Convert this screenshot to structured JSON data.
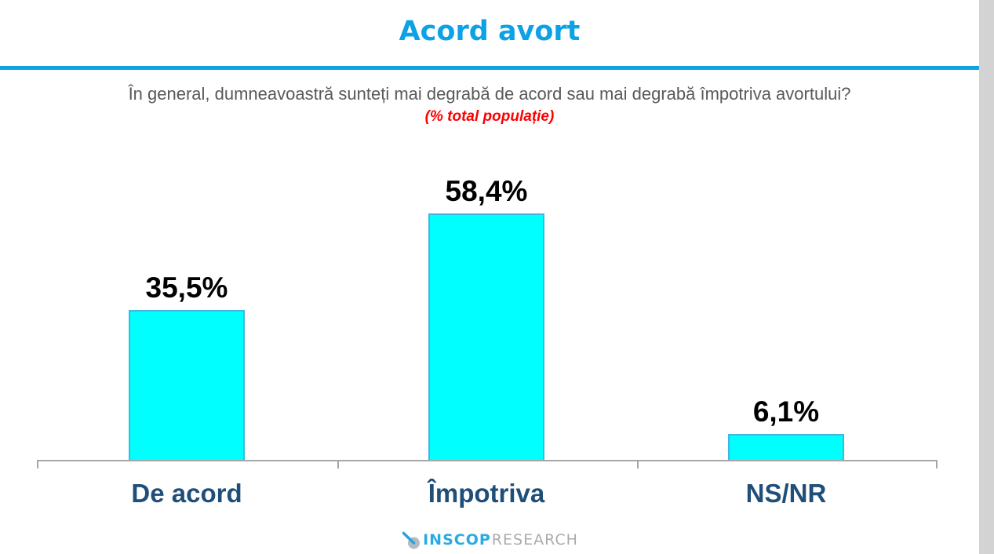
{
  "header": {
    "title": "Acord avort",
    "question": "În general, dumneavoastră sunteți mai degrabă de acord sau mai degrabă împotriva avortului?",
    "note": "(% total populație)"
  },
  "chart_data": {
    "type": "bar",
    "title": "Acord avort",
    "subtitle": "În general, dumneavoastră sunteți mai degrabă de acord sau mai degrabă împotriva avortului?",
    "unit_note": "(% total populație)",
    "categories": [
      "De acord",
      "Împotriva",
      "NS/NR"
    ],
    "values": [
      35.5,
      58.4,
      6.1
    ],
    "value_labels": [
      "35,5%",
      "58,4%",
      "6,1%"
    ],
    "ylim": [
      0,
      70
    ],
    "grid": false,
    "legend": false,
    "bar_color": "#00FFFF",
    "bar_border_color": "#41B6E0",
    "value_label_color": "#000000",
    "category_label_color": "#1F4E79",
    "axis_color": "#A6A6A6"
  },
  "branding": {
    "logo_primary": "INSCOP",
    "logo_secondary": "RESEARCH",
    "logo_icon": "compass-pin-icon"
  },
  "colors": {
    "accent_blue": "#0DA2E6",
    "question_gray": "#595959",
    "note_red": "#FF0000",
    "scrollbar_gray": "#D3D3D3"
  }
}
